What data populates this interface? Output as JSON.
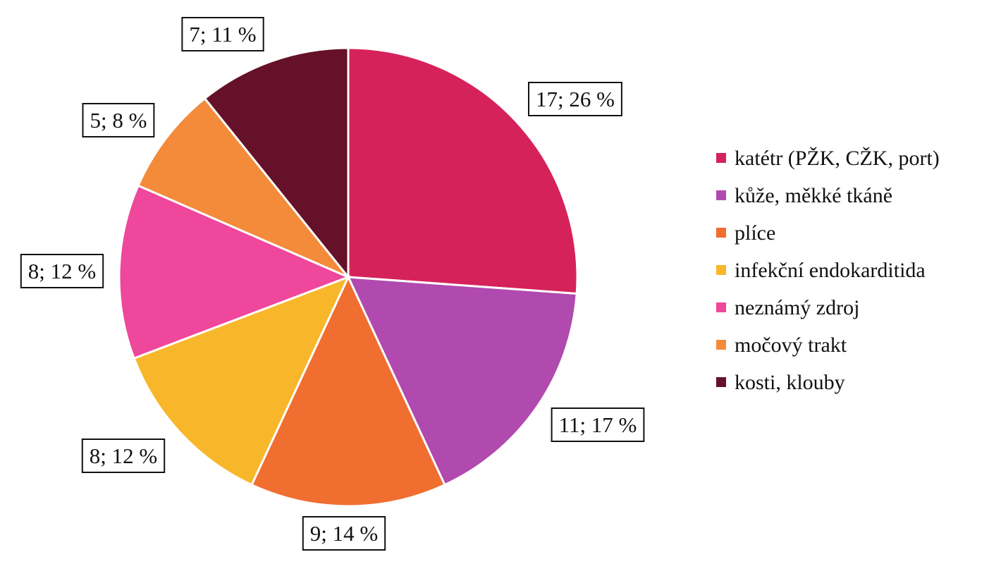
{
  "chart_data": {
    "type": "pie",
    "title": "",
    "start_angle_deg": 0,
    "direction": "clockwise",
    "legend_position": "right",
    "slices": [
      {
        "name": "katétr (PŽK, CŽK, port)",
        "value": 17,
        "percent_label": "17; 26 %",
        "color": "#D6225B"
      },
      {
        "name": "kůže, měkké tkáně",
        "value": 11,
        "percent_label": "11; 17 %",
        "color": "#B04AAE"
      },
      {
        "name": "plíce",
        "value": 9,
        "percent_label": "9; 14 %",
        "color": "#F06E30"
      },
      {
        "name": "infekční endokarditida",
        "value": 8,
        "percent_label": "8; 12 %",
        "color": "#F8B72A"
      },
      {
        "name": "neznámý zdroj",
        "value": 8,
        "percent_label": "8; 12 %",
        "color": "#EE479B"
      },
      {
        "name": "močový trakt",
        "value": 5,
        "percent_label": "5; 8 %",
        "color": "#F38B3A"
      },
      {
        "name": "kosti, klouby",
        "value": 7,
        "percent_label": "7; 11 %",
        "color": "#65112A"
      }
    ]
  }
}
